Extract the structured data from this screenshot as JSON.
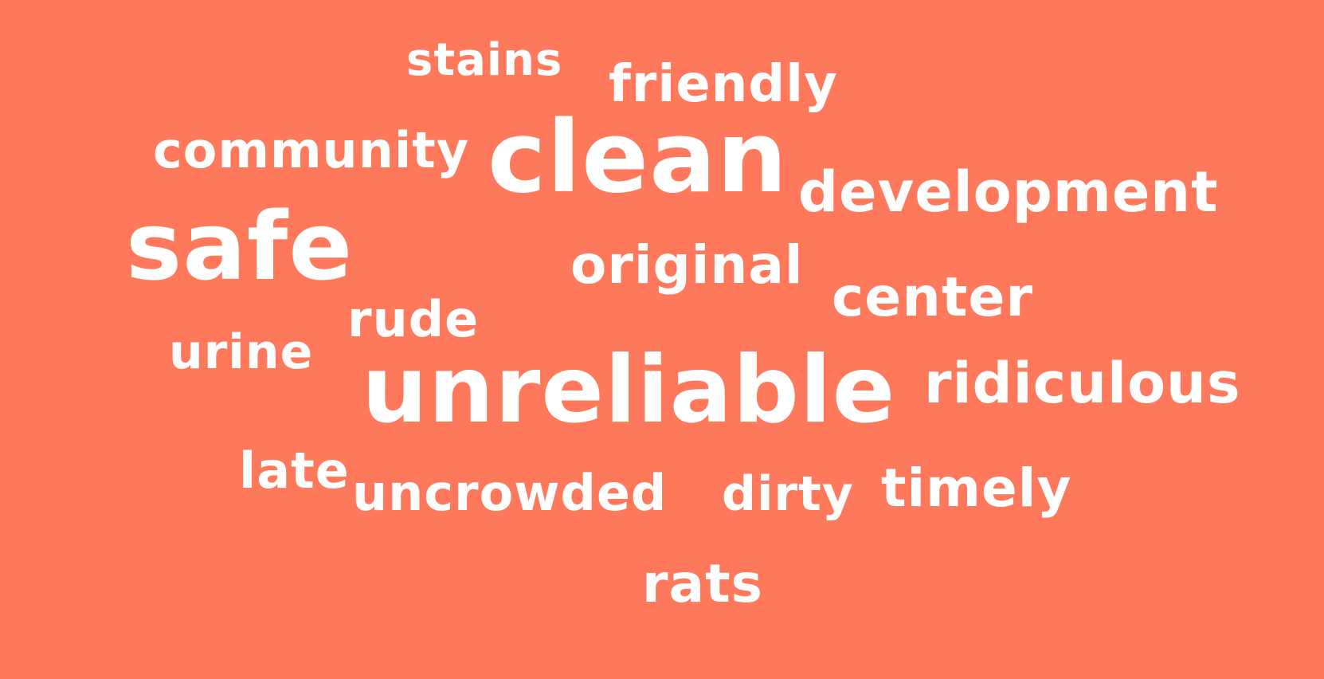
{
  "background_color": "#fe785c",
  "text_color": "#ffffff",
  "words": {
    "stains": "stains",
    "friendly": "friendly",
    "community": "community",
    "clean": "clean",
    "development": "development",
    "safe": "safe",
    "original": "original",
    "center": "center",
    "rude": "rude",
    "urine": "urine",
    "unreliable": "unreliable",
    "ridiculous": "ridiculous",
    "late": "late",
    "uncrowded": "uncrowded",
    "dirty": "dirty",
    "timely": "timely",
    "rats": "rats"
  }
}
